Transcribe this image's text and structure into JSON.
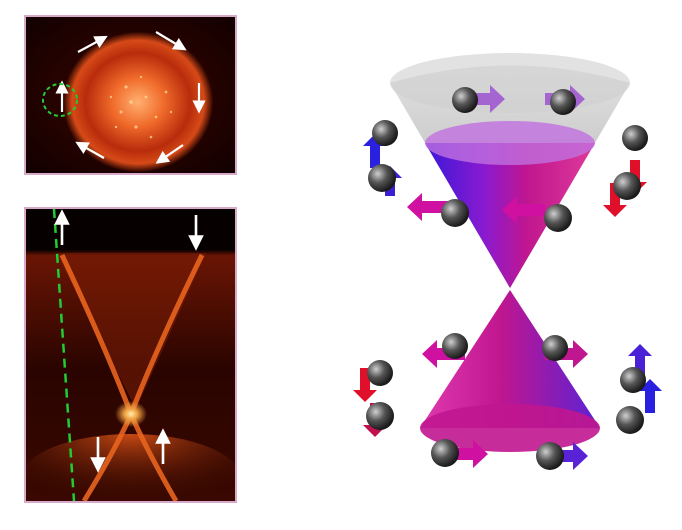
{
  "figure": {
    "panels": [
      {
        "id": "fermi-surface-map",
        "description_icon": "spin-arrow-icon"
      },
      {
        "id": "dispersion-map",
        "description_icon": "spin-arrow-icon"
      }
    ],
    "cone_model": {
      "icon": "dirac-cone-icon"
    }
  },
  "colors": {
    "panel_border": "#d9a9c9",
    "intensity_high": "#ffdc8a",
    "intensity_mid": "#d2461a",
    "intensity_low": "#3a0500",
    "guide_line": "#22cc33",
    "arrow": "#ffffff",
    "cone_magenta": "#c0168f",
    "cone_blue": "#4a22d6",
    "cone_grey": "#b3b3b3",
    "spin_red": "#e0102a",
    "spin_blue": "#2a20e0",
    "spin_magenta": "#d010a0"
  }
}
